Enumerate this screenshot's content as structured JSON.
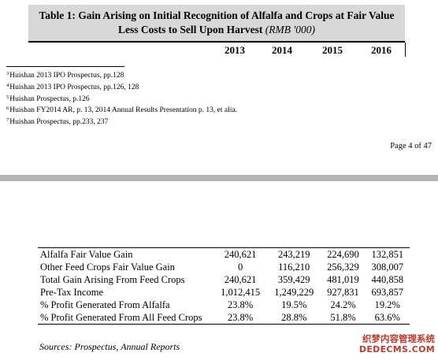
{
  "table1": {
    "title": "Table 1: Gain Arising on Initial Recognition of Alfalfa and Crops at Fair Value Less Costs to Sell Upon Harvest",
    "unit": "(RMB '000)",
    "years": [
      "2013",
      "2014",
      "2015",
      "2016"
    ]
  },
  "footnotes": [
    {
      "num": "3",
      "text": "Huishan 2013 IPO Prospectus, pp.128"
    },
    {
      "num": "4",
      "text": "Huishan 2013 IPO Prospectus, pp.126, 128"
    },
    {
      "num": "5",
      "text": "Huishan Prospectus, p.126"
    },
    {
      "num": "6",
      "text": "Huishan FY2014 AR, p. 13, 2014 Annual Results Presentation p. 13, et alia."
    },
    {
      "num": "7",
      "text": "Huishan Prospectus, pp.233, 237"
    }
  ],
  "page_label": "Page 4 of 47",
  "rows": [
    {
      "label": "Alfalfa Fair Value Gain",
      "values": [
        "240,621",
        "243,219",
        "224,690",
        "132,851"
      ]
    },
    {
      "label": "Other Feed Crops Fair Value Gain",
      "values": [
        "0",
        "116,210",
        "256,329",
        "308,007"
      ]
    },
    {
      "label": "Total Gain Arising From Feed Crops",
      "values": [
        "240,621",
        "359,429",
        "481,019",
        "440,858"
      ]
    },
    {
      "label": "Pre-Tax Income",
      "values": [
        "1,012,415",
        "1,249,229",
        "927,831",
        "693,857"
      ]
    },
    {
      "label": "% Profit Generated From Alfalfa",
      "values": [
        "23.8%",
        "19.5%",
        "24.2%",
        "19.2%"
      ]
    },
    {
      "label": "% Profit Generated From All Feed Crops",
      "values": [
        "23.8%",
        "28.8%",
        "51.8%",
        "63.6%"
      ]
    }
  ],
  "sources": "Sources: Prospectus, Annual Reports",
  "watermark": {
    "cn": "织梦内容管理系统",
    "url": "DEDECMS.COM"
  }
}
